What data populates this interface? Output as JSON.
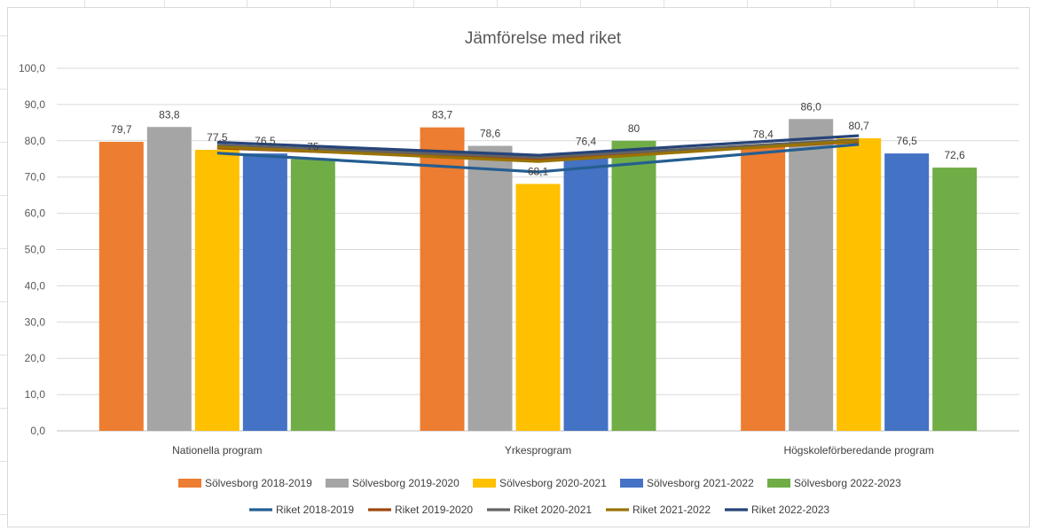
{
  "chart_data": {
    "type": "bar",
    "title": "Jämförelse med riket",
    "xlabel": "",
    "ylabel": "",
    "ylim": [
      0,
      100
    ],
    "yticks": [
      "0,0",
      "10,0",
      "20,0",
      "30,0",
      "40,0",
      "50,0",
      "60,0",
      "70,0",
      "80,0",
      "90,0",
      "100,0"
    ],
    "grid": true,
    "legend_position": "bottom",
    "categories": [
      "Nationella program",
      "Yrkesprogram",
      "Högskoleförberedande program"
    ],
    "bar_series": [
      {
        "name": "Sölvesborg 2018-2019",
        "color": "#ED7D31",
        "values": [
          79.7,
          83.7,
          78.4
        ],
        "labels": [
          "79,7",
          "83,7",
          "78,4"
        ]
      },
      {
        "name": "Sölvesborg 2019-2020",
        "color": "#A5A5A5",
        "values": [
          83.8,
          78.6,
          86.0
        ],
        "labels": [
          "83,8",
          "78,6",
          "86,0"
        ]
      },
      {
        "name": "Sölvesborg 2020-2021",
        "color": "#FFC000",
        "values": [
          77.5,
          68.1,
          80.7
        ],
        "labels": [
          "77,5",
          "68,1",
          "80,7"
        ]
      },
      {
        "name": "Sölvesborg 2021-2022",
        "color": "#4472C4",
        "values": [
          76.5,
          76.4,
          76.5
        ],
        "labels": [
          "76,5",
          "76,4",
          "76,5"
        ]
      },
      {
        "name": "Sölvesborg 2022-2023",
        "color": "#70AD47",
        "values": [
          75,
          80,
          72.6
        ],
        "labels": [
          "75",
          "80",
          "72,6"
        ]
      }
    ],
    "line_series": [
      {
        "name": "Riket 2018-2019",
        "color": "#255E91",
        "values": [
          76.6,
          71.4,
          79.0
        ]
      },
      {
        "name": "Riket 2019-2020",
        "color": "#9E480E",
        "values": [
          78.0,
          74.8,
          79.8
        ]
      },
      {
        "name": "Riket 2020-2021",
        "color": "#636363",
        "values": [
          78.8,
          75.4,
          80.3
        ]
      },
      {
        "name": "Riket 2021-2022",
        "color": "#997300",
        "values": [
          78.3,
          74.3,
          80.0
        ]
      },
      {
        "name": "Riket 2022-2023",
        "color": "#264478",
        "values": [
          79.6,
          76.0,
          81.4
        ]
      }
    ]
  }
}
